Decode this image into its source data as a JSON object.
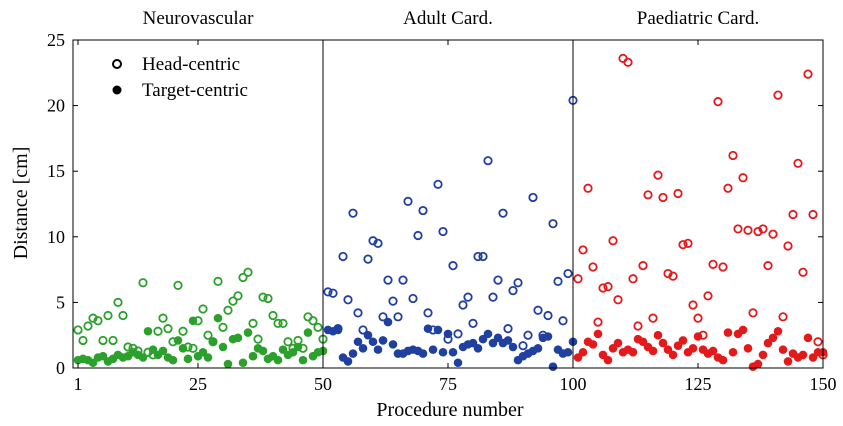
{
  "chart_data": {
    "type": "scatter",
    "xlabel": "Procedure number",
    "ylabel": "Distance [cm]",
    "xlim": [
      0,
      150
    ],
    "ylim": [
      0,
      25
    ],
    "xticks": [
      1,
      25,
      50,
      75,
      100,
      125,
      150
    ],
    "yticks": [
      0,
      5,
      10,
      15,
      20,
      25
    ],
    "panels": [
      {
        "title": "Neurovascular",
        "range": [
          0,
          50
        ],
        "color": "#2ca02c"
      },
      {
        "title": "Adult Card.",
        "range": [
          50,
          100
        ],
        "color": "#2040a0"
      },
      {
        "title": "Paediatric Card.",
        "range": [
          100,
          150
        ],
        "color": "#e31a1c"
      }
    ],
    "legend_position": "top-left",
    "series": [
      {
        "name": "Head-centric",
        "marker": "open-circle",
        "x": [
          1,
          2,
          3,
          4,
          5,
          6,
          7,
          8,
          9,
          10,
          11,
          12,
          13,
          14,
          15,
          16,
          17,
          18,
          19,
          20,
          21,
          22,
          23,
          24,
          25,
          26,
          27,
          28,
          29,
          30,
          31,
          32,
          33,
          34,
          35,
          36,
          37,
          38,
          39,
          40,
          41,
          42,
          43,
          44,
          45,
          46,
          47,
          48,
          49,
          50,
          51,
          52,
          53,
          54,
          55,
          56,
          57,
          58,
          59,
          60,
          61,
          62,
          63,
          64,
          65,
          66,
          67,
          68,
          69,
          70,
          71,
          72,
          73,
          74,
          75,
          76,
          77,
          78,
          79,
          80,
          81,
          82,
          83,
          84,
          85,
          86,
          87,
          88,
          89,
          90,
          91,
          92,
          93,
          94,
          95,
          96,
          97,
          98,
          99,
          100,
          101,
          102,
          103,
          104,
          105,
          106,
          107,
          108,
          109,
          110,
          111,
          112,
          113,
          114,
          115,
          116,
          117,
          118,
          119,
          120,
          121,
          122,
          123,
          124,
          125,
          126,
          127,
          128,
          129,
          130,
          131,
          132,
          133,
          134,
          135,
          136,
          137,
          138,
          139,
          140,
          141,
          142,
          143,
          144,
          145,
          146,
          147,
          148,
          149,
          150
        ],
        "y": [
          2.9,
          2.1,
          3.2,
          3.8,
          3.6,
          2.1,
          4.0,
          2.1,
          5.0,
          4.0,
          1.6,
          1.5,
          1.3,
          6.5,
          1.2,
          1.0,
          2.8,
          3.8,
          3.0,
          2.0,
          6.3,
          2.8,
          1.6,
          1.5,
          3.6,
          4.5,
          2.5,
          2.0,
          6.6,
          3.1,
          4.4,
          5.1,
          5.5,
          6.9,
          7.3,
          3.4,
          2.2,
          5.4,
          5.3,
          4.0,
          3.4,
          3.4,
          2.0,
          1.5,
          2.1,
          1.5,
          3.9,
          3.6,
          3.1,
          2.2,
          5.8,
          5.7,
          3.0,
          8.5,
          5.2,
          11.8,
          4.2,
          2.9,
          8.3,
          9.7,
          9.5,
          3.9,
          6.7,
          5.1,
          3.9,
          6.7,
          12.7,
          5.3,
          10.1,
          12.0,
          4.2,
          2.9,
          14.0,
          10.4,
          2.2,
          7.8,
          2.6,
          4.8,
          5.4,
          3.4,
          8.5,
          8.5,
          15.8,
          5.4,
          6.7,
          11.8,
          3.0,
          5.9,
          6.5,
          1.7,
          2.5,
          13.0,
          4.4,
          2.5,
          4.0,
          11.0,
          6.6,
          3.6,
          7.2,
          20.4,
          6.8,
          9.0,
          13.7,
          7.7,
          3.5,
          6.1,
          6.2,
          9.7,
          5.2,
          23.6,
          23.3,
          6.8,
          3.2,
          7.8,
          13.2,
          3.8,
          14.7,
          13.0,
          7.2,
          7.0,
          13.3,
          9.4,
          9.5,
          4.8,
          3.8,
          2.5,
          5.5,
          7.9,
          20.3,
          7.7,
          13.7,
          16.2,
          10.6,
          14.5,
          10.5,
          4.2,
          10.4,
          10.6,
          7.8,
          10.2,
          20.8,
          3.9,
          9.3,
          11.7,
          15.6,
          7.3,
          22.4,
          11.7,
          2.0,
          1.0
        ]
      },
      {
        "name": "Target-centric",
        "marker": "filled-circle",
        "x": [
          1,
          2,
          3,
          4,
          5,
          6,
          7,
          8,
          9,
          10,
          11,
          12,
          13,
          14,
          15,
          16,
          17,
          18,
          19,
          20,
          21,
          22,
          23,
          24,
          25,
          26,
          27,
          28,
          29,
          30,
          31,
          32,
          33,
          34,
          35,
          36,
          37,
          38,
          39,
          40,
          41,
          42,
          43,
          44,
          45,
          46,
          47,
          48,
          49,
          50,
          51,
          52,
          53,
          54,
          55,
          56,
          57,
          58,
          59,
          60,
          61,
          62,
          63,
          64,
          65,
          66,
          67,
          68,
          69,
          70,
          71,
          72,
          73,
          74,
          75,
          76,
          77,
          78,
          79,
          80,
          81,
          82,
          83,
          84,
          85,
          86,
          87,
          88,
          89,
          90,
          91,
          92,
          93,
          94,
          95,
          96,
          97,
          98,
          99,
          100,
          101,
          102,
          103,
          104,
          105,
          106,
          107,
          108,
          109,
          110,
          111,
          112,
          113,
          114,
          115,
          116,
          117,
          118,
          119,
          120,
          121,
          122,
          123,
          124,
          125,
          126,
          127,
          128,
          129,
          130,
          131,
          132,
          133,
          134,
          135,
          136,
          137,
          138,
          139,
          140,
          141,
          142,
          143,
          144,
          145,
          146,
          147,
          148,
          149,
          150
        ],
        "y": [
          0.6,
          0.7,
          0.6,
          0.4,
          0.8,
          0.9,
          0.5,
          0.7,
          1.0,
          0.8,
          0.9,
          1.2,
          1.0,
          0.8,
          2.8,
          1.4,
          1.0,
          1.3,
          0.8,
          0.6,
          2.1,
          1.5,
          0.7,
          3.6,
          0.9,
          1.2,
          0.8,
          2.0,
          3.8,
          1.6,
          0.3,
          2.2,
          2.3,
          0.4,
          2.7,
          0.9,
          1.5,
          1.3,
          0.7,
          0.9,
          0.6,
          1.4,
          1.0,
          1.2,
          1.6,
          0.6,
          2.7,
          0.9,
          1.2,
          1.3,
          2.9,
          2.8,
          2.9,
          0.8,
          0.5,
          1.1,
          2.0,
          1.5,
          2.5,
          2.0,
          1.4,
          2.1,
          3.5,
          1.8,
          1.1,
          1.1,
          1.3,
          1.4,
          1.3,
          1.1,
          3.0,
          1.4,
          2.9,
          1.2,
          2.6,
          1.2,
          0.4,
          1.6,
          1.8,
          1.9,
          1.5,
          2.2,
          2.6,
          1.9,
          2.3,
          1.9,
          2.1,
          1.6,
          0.6,
          0.9,
          1.1,
          1.3,
          1.5,
          2.3,
          2.4,
          0.1,
          1.4,
          1.1,
          1.2,
          2.0,
          0.8,
          1.2,
          2.0,
          1.8,
          2.6,
          1.0,
          0.6,
          1.5,
          1.9,
          1.2,
          1.4,
          1.2,
          2.2,
          2.0,
          1.6,
          1.3,
          2.5,
          1.9,
          1.4,
          1.0,
          1.7,
          2.1,
          1.2,
          1.5,
          2.4,
          1.4,
          1.1,
          1.3,
          0.8,
          0.6,
          2.7,
          1.2,
          2.6,
          2.9,
          1.5,
          0.1,
          0.3,
          1.0,
          1.9,
          2.3,
          2.8,
          1.4,
          0.5,
          1.1,
          0.8,
          1.0,
          2.3,
          0.8,
          1.2,
          1.2
        ]
      }
    ]
  }
}
